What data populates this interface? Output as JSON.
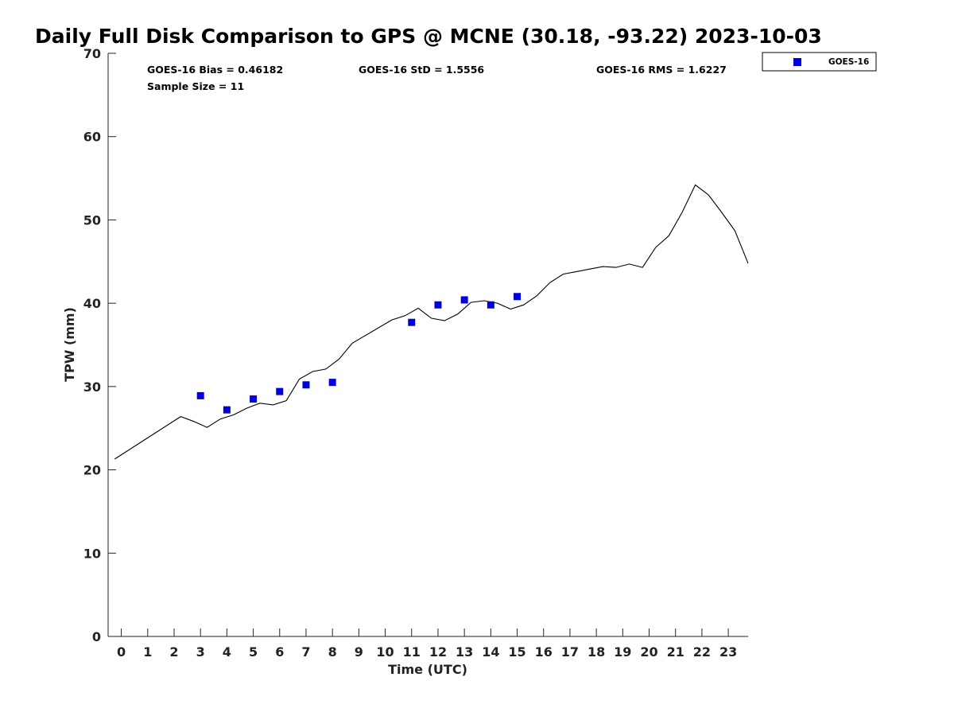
{
  "chart_data": {
    "type": "scatter",
    "title": "Daily Full Disk Comparison to GPS @ MCNE (30.18, -93.22) 2023-10-03",
    "xlabel": "Time (UTC)",
    "ylabel": "TPW (mm)",
    "xlim": [
      -0.5,
      23.75
    ],
    "ylim": [
      0,
      70
    ],
    "x_ticks": [
      0,
      1,
      2,
      3,
      4,
      5,
      6,
      7,
      8,
      9,
      10,
      11,
      12,
      13,
      14,
      15,
      16,
      17,
      18,
      19,
      20,
      21,
      22,
      23
    ],
    "y_ticks": [
      0,
      10,
      20,
      30,
      40,
      50,
      60,
      70
    ],
    "grid": false,
    "legend": {
      "position": "top-right",
      "entries": [
        "GOES-16"
      ]
    },
    "stats": {
      "bias": "GOES-16 Bias = 0.46182",
      "std": "GOES-16 StD = 1.5556",
      "rms": "GOES-16 RMS = 1.6227",
      "sample": "Sample Size = 11"
    },
    "series": [
      {
        "name": "GOES-16",
        "kind": "scatter",
        "color": "#0000dd",
        "x": [
          3,
          4,
          5,
          6,
          7,
          8,
          11,
          12,
          13,
          14,
          15
        ],
        "y": [
          28.9,
          27.2,
          28.5,
          29.4,
          30.2,
          30.5,
          37.7,
          39.8,
          40.4,
          39.8,
          40.8
        ]
      },
      {
        "kind": "line",
        "color": "#000000",
        "x": [
          -0.25,
          2.25,
          2.75,
          3.25,
          3.75,
          4.25,
          4.75,
          5.25,
          5.75,
          6.25,
          6.75,
          7.25,
          7.75,
          8.25,
          8.75,
          10.25,
          10.75,
          11.25,
          11.75,
          12.25,
          12.75,
          13.25,
          13.75,
          14.25,
          14.75,
          15.25,
          15.75,
          16.25,
          16.75,
          17.25,
          17.75,
          18.25,
          18.75,
          19.25,
          19.75,
          20.25,
          20.75,
          21.25,
          21.75,
          22.25,
          22.75,
          23.25,
          23.75
        ],
        "y": [
          21.3,
          26.4,
          25.8,
          25.1,
          26.1,
          26.6,
          27.4,
          28.0,
          27.8,
          28.3,
          30.9,
          31.8,
          32.1,
          33.3,
          35.2,
          38.0,
          38.5,
          39.4,
          38.2,
          37.9,
          38.7,
          40.1,
          40.3,
          40.0,
          39.3,
          39.8,
          40.9,
          42.5,
          43.5,
          43.8,
          44.1,
          44.4,
          44.3,
          44.7,
          44.3,
          46.7,
          48.1,
          50.9,
          54.2,
          53.0,
          50.9,
          48.7,
          44.8
        ]
      }
    ]
  }
}
